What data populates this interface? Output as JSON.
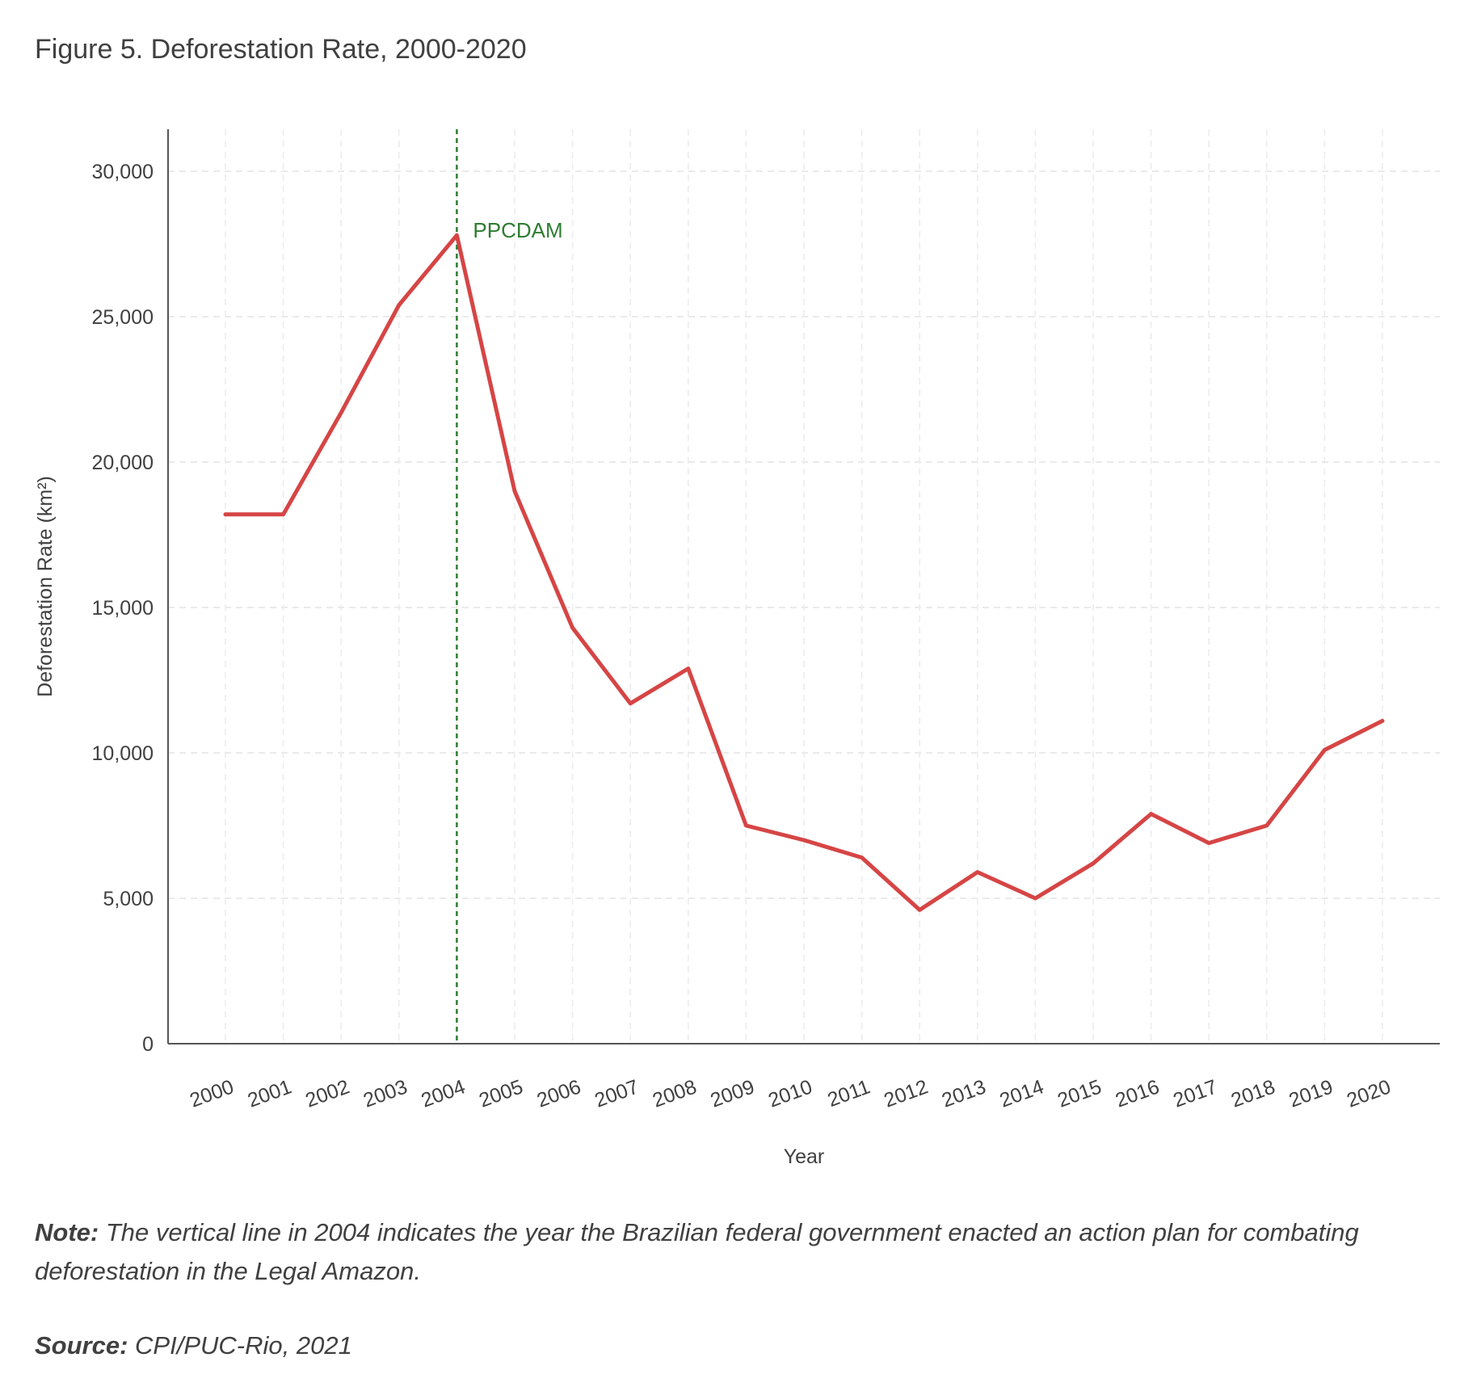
{
  "title": "Figure 5. Deforestation Rate, 2000-2020",
  "note": {
    "label": "Note:",
    "text": "The vertical line in 2004 indicates the year the Brazilian federal government enacted an action plan for combating deforestation in the Legal Amazon."
  },
  "source": {
    "label": "Source:",
    "text": "CPI/PUC-Rio, 2021"
  },
  "chart_data": {
    "type": "line",
    "xlabel": "Year",
    "ylabel": "Deforestation Rate (km²)",
    "ylim": [
      0,
      31500
    ],
    "yticks": [
      0,
      5000,
      10000,
      15000,
      20000,
      25000,
      30000
    ],
    "ytick_labels": [
      "0",
      "5,000",
      "10,000",
      "15,000",
      "20,000",
      "25,000",
      "30,000"
    ],
    "categories": [
      "2000",
      "2001",
      "2002",
      "2003",
      "2004",
      "2005",
      "2006",
      "2007",
      "2008",
      "2009",
      "2010",
      "2011",
      "2012",
      "2013",
      "2014",
      "2015",
      "2016",
      "2017",
      "2018",
      "2019",
      "2020"
    ],
    "grid": true,
    "series": [
      {
        "color": "#d64545",
        "values": [
          18200,
          18200,
          21700,
          25400,
          27800,
          19000,
          14300,
          11700,
          12900,
          7500,
          7000,
          6400,
          4600,
          5900,
          5000,
          6200,
          7900,
          6900,
          7500,
          10100,
          11100
        ]
      }
    ],
    "annotations": [
      {
        "x": "2004",
        "label": "PPCDAM",
        "type": "vertical-dashed-line",
        "color": "#2e7d32"
      }
    ]
  }
}
